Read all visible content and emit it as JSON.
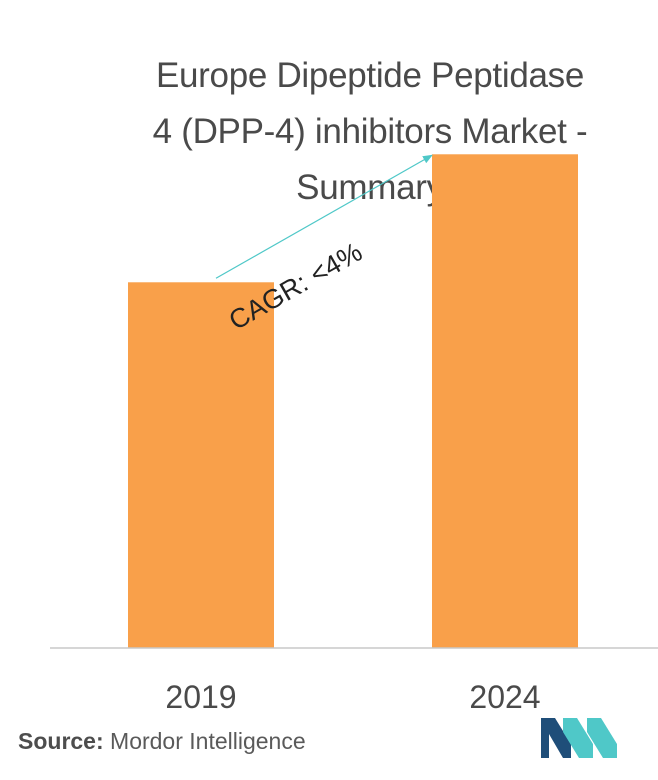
{
  "chart_data": {
    "type": "bar",
    "title_lines": [
      "Europe Dipeptide Peptidase",
      "4 (DPP-4) inhibitors Market -",
      "Summary"
    ],
    "categories": [
      "2019",
      "2024"
    ],
    "values": [
      100,
      135
    ],
    "ylim": [
      0,
      140
    ],
    "xlabel": "",
    "ylabel": "",
    "grid": false,
    "annotation": "CAGR: <4%",
    "colors": {
      "bar": "#f9a04a",
      "arrow": "#4fc8c8",
      "axis": "#c8c8c8",
      "tick_text": "#4a4a4a"
    }
  },
  "footer": {
    "source_label": "Source:",
    "source_text": "Mordor Intelligence",
    "logo_icon": "mordor-intelligence-logo-icon",
    "logo_colors": [
      "#1f4e79",
      "#4fc8c8"
    ]
  }
}
